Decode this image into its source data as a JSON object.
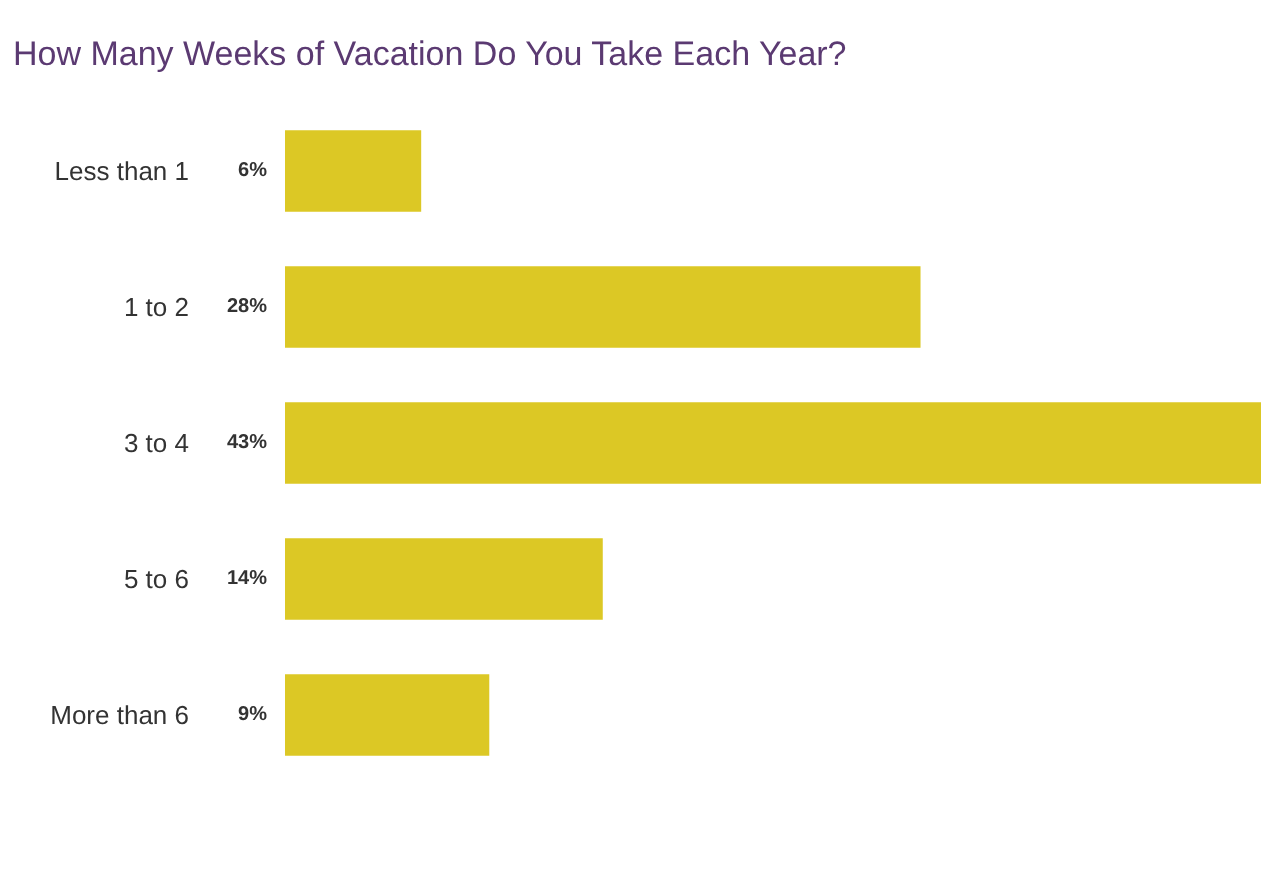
{
  "chart_data": {
    "type": "bar",
    "orientation": "horizontal",
    "title": "How Many Weeks of Vacation Do You Take Each Year?",
    "categories": [
      "Less than 1",
      "1 to 2",
      "3 to 4",
      "5 to 6",
      "More than 6"
    ],
    "values": [
      6,
      28,
      43,
      14,
      9
    ],
    "value_labels": [
      "6%",
      "28%",
      "43%",
      "14%",
      "9%"
    ],
    "color": "#dcc825",
    "grid": false
  }
}
